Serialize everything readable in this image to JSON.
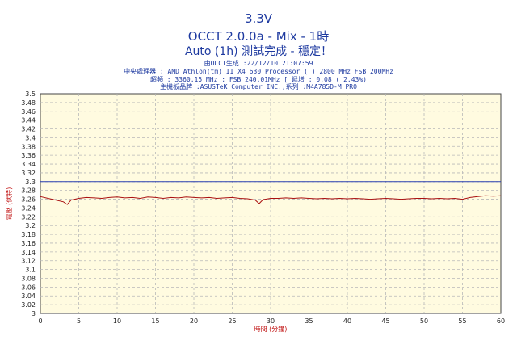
{
  "header": {
    "title_line1": "3.3V",
    "title_line2": "OCCT 2.0.0a - Mix - 1時",
    "title_line3": "Auto (1h) 測試完成 - 穩定！",
    "info_line1": "由OCCT生成 :22/12/10 21:07:59",
    "info_line2": "中央處理器 : AMD Athlon(tm) II X4 630 Processor (  ) 2800 MHz FSB 200MHz",
    "info_line3": "超頻 : 3360.15 MHz ; FSB 240.01MHz [ 遞增 : 0.08 ( 2.43%)",
    "info_line4": "主機板品牌 :ASUSTeK Computer INC.,系列 :M4A785D-M PRO"
  },
  "chart_data": {
    "type": "line",
    "xlabel": "時間 (分鐘)",
    "ylabel": "電壓 (伏特)",
    "xlim": [
      0,
      60
    ],
    "ylim": [
      3.0,
      3.5
    ],
    "x_ticks": [
      0,
      5,
      10,
      15,
      20,
      25,
      30,
      35,
      40,
      45,
      50,
      55,
      60
    ],
    "y_ticks": [
      "3",
      "3.02",
      "3.04",
      "3.06",
      "3.08",
      "3.1",
      "3.12",
      "3.14",
      "3.16",
      "3.18",
      "3.2",
      "3.22",
      "3.24",
      "3.26",
      "3.28",
      "3.3",
      "3.32",
      "3.34",
      "3.36",
      "3.38",
      "3.4",
      "3.42",
      "3.44",
      "3.46",
      "3.48",
      "3.5"
    ],
    "grid": true,
    "reference_line": 3.3,
    "series": [
      {
        "color": "#aa1111",
        "x": [
          0,
          1,
          2,
          3,
          3.5,
          4,
          5,
          6,
          7,
          8,
          9,
          10,
          11,
          12,
          13,
          14,
          15,
          16,
          17,
          18,
          19,
          20,
          21,
          22,
          23,
          24,
          25,
          26,
          27,
          28,
          28.5,
          29,
          30,
          31,
          32,
          33,
          34,
          35,
          36,
          37,
          38,
          39,
          40,
          41,
          42,
          43,
          44,
          45,
          46,
          47,
          48,
          49,
          50,
          51,
          52,
          53,
          54,
          55,
          56,
          57,
          58,
          59,
          60
        ],
        "y": [
          3.266,
          3.262,
          3.258,
          3.254,
          3.248,
          3.258,
          3.262,
          3.264,
          3.263,
          3.262,
          3.264,
          3.265,
          3.263,
          3.264,
          3.262,
          3.265,
          3.264,
          3.262,
          3.264,
          3.263,
          3.265,
          3.264,
          3.263,
          3.264,
          3.262,
          3.263,
          3.264,
          3.262,
          3.261,
          3.258,
          3.25,
          3.259,
          3.262,
          3.262,
          3.263,
          3.262,
          3.263,
          3.262,
          3.261,
          3.262,
          3.261,
          3.262,
          3.261,
          3.262,
          3.261,
          3.26,
          3.261,
          3.262,
          3.261,
          3.26,
          3.261,
          3.262,
          3.262,
          3.261,
          3.262,
          3.261,
          3.262,
          3.26,
          3.264,
          3.266,
          3.268,
          3.267,
          3.268
        ]
      }
    ]
  }
}
